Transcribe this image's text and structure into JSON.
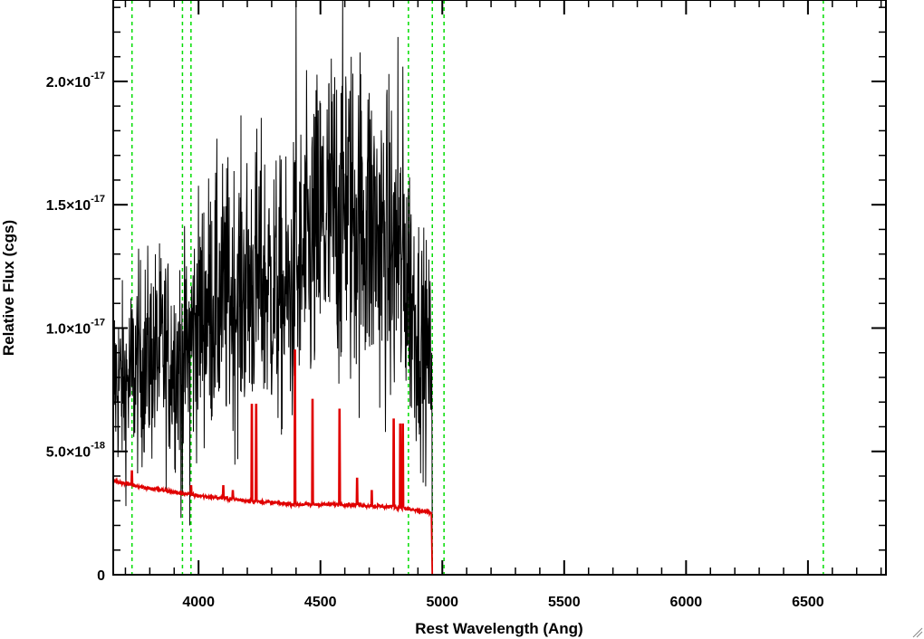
{
  "chart_data": {
    "type": "line",
    "xlabel": "Rest Wavelength (Ang)",
    "ylabel": "Relative Flux (cgs)",
    "xlim": [
      3650,
      6820
    ],
    "ylim": [
      0,
      2.33e-17
    ],
    "x_ticks": [
      {
        "value": 4000,
        "label": "4000"
      },
      {
        "value": 4500,
        "label": "4500"
      },
      {
        "value": 5000,
        "label": "5000"
      },
      {
        "value": 5500,
        "label": "5500"
      },
      {
        "value": 6000,
        "label": "6000"
      },
      {
        "value": 6500,
        "label": "6500"
      }
    ],
    "y_ticks": [
      {
        "value": 0,
        "mantissa": "0",
        "exponent": ""
      },
      {
        "value": 5e-18,
        "mantissa": "5.0×10",
        "exponent": "-18"
      },
      {
        "value": 1e-17,
        "mantissa": "1.0×10",
        "exponent": "-17"
      },
      {
        "value": 1.5e-17,
        "mantissa": "1.5×10",
        "exponent": "-17"
      },
      {
        "value": 2e-17,
        "mantissa": "2.0×10",
        "exponent": "-17"
      }
    ],
    "x_minor_step": 100,
    "y_minor_step": 1e-18,
    "vertical_lines": {
      "color": "#00dd00",
      "style": "dashed",
      "x": [
        3727,
        3934,
        3969,
        4861,
        4959,
        5007,
        6563
      ]
    },
    "series": [
      {
        "color": "#000000",
        "style": "noisy-spectrum",
        "x_range": [
          3650,
          4959
        ],
        "envelope": {
          "x": [
            3650,
            3700,
            3750,
            3800,
            3850,
            3900,
            3950,
            4000,
            4050,
            4100,
            4150,
            4200,
            4250,
            4300,
            4350,
            4400,
            4450,
            4500,
            4550,
            4600,
            4650,
            4700,
            4750,
            4800,
            4850,
            4900,
            4950,
            4959
          ],
          "y": [
            8e-18,
            7.6e-18,
            8.5e-18,
            8.8e-18,
            9e-18,
            8.7e-18,
            8.9e-18,
            1.04e-17,
            1.1e-17,
            1.12e-17,
            1.13e-17,
            1.17e-17,
            1.2e-17,
            1.16e-17,
            1.1e-17,
            1.18e-17,
            1.3e-17,
            1.4e-17,
            1.46e-17,
            1.48e-17,
            1.45e-17,
            1.42e-17,
            1.35e-17,
            1.28e-17,
            1.25e-17,
            1e-17,
            8.5e-18,
            8.7e-18
          ]
        },
        "spikes": [
          {
            "x": 4400,
            "y": 2.33e-17
          },
          {
            "x": 4818,
            "y": 2.18e-17
          },
          {
            "x": 4838,
            "y": 2.06e-17
          },
          {
            "x": 4604,
            "y": 2.02e-17
          },
          {
            "x": 3964,
            "y": 2e-18
          },
          {
            "x": 3928,
            "y": 2.3e-18
          }
        ],
        "cutoff": {
          "x": 4959,
          "y": 0
        }
      },
      {
        "color": "#e00000",
        "style": "model-continuum",
        "continuum": {
          "x": [
            3650,
            3800,
            4000,
            4200,
            4400,
            4600,
            4800,
            4900,
            4955
          ],
          "y": [
            3.8e-18,
            3.5e-18,
            3.2e-18,
            3e-18,
            2.85e-18,
            2.85e-18,
            2.75e-18,
            2.6e-18,
            2.5e-18
          ]
        },
        "emission_lines": [
          {
            "x": 3727,
            "y": 4.2e-18
          },
          {
            "x": 3970,
            "y": 3.6e-18
          },
          {
            "x": 4102,
            "y": 3.6e-18
          },
          {
            "x": 4140,
            "y": 3.4e-18
          },
          {
            "x": 4218,
            "y": 6.9e-18
          },
          {
            "x": 4236,
            "y": 6.9e-18
          },
          {
            "x": 4395,
            "y": 9.1e-18
          },
          {
            "x": 4468,
            "y": 7.1e-18
          },
          {
            "x": 4578,
            "y": 6.7e-18
          },
          {
            "x": 4650,
            "y": 3.9e-18
          },
          {
            "x": 4710,
            "y": 3.4e-18
          },
          {
            "x": 4800,
            "y": 6.3e-18
          },
          {
            "x": 4828,
            "y": 6.1e-18
          },
          {
            "x": 4838,
            "y": 6.1e-18
          }
        ],
        "cutoff": {
          "x": 4959,
          "y": 0
        },
        "flat_after": 0
      }
    ]
  }
}
